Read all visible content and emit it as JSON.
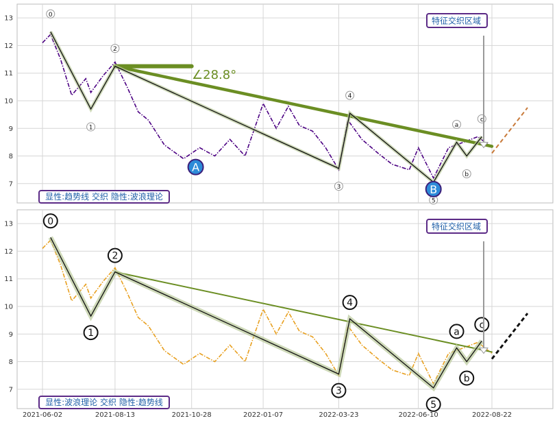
{
  "chart_data": [
    {
      "type": "line",
      "ylim": [
        6.3,
        13.5
      ],
      "y_ticks": [
        "7",
        "8",
        "9",
        "10",
        "11",
        "12",
        "13"
      ],
      "grid": true,
      "series": [
        {
          "color": "#4b0082",
          "style": "dash-dot",
          "x": [
            "2021-06-02",
            "2021-06-10",
            "2021-06-20",
            "2021-07-01",
            "2021-07-15",
            "2021-07-20",
            "2021-08-01",
            "2021-08-13",
            "2021-08-25",
            "2021-09-05",
            "2021-09-15",
            "2021-10-01",
            "2021-10-20",
            "2021-11-05",
            "2021-11-20",
            "2021-12-05",
            "2021-12-20",
            "2022-01-07",
            "2022-01-20",
            "2022-02-01",
            "2022-02-12",
            "2022-02-25",
            "2022-03-10",
            "2022-03-23",
            "2022-04-01",
            "2022-04-15",
            "2022-05-01",
            "2022-05-15",
            "2022-06-01",
            "2022-06-10",
            "2022-06-25",
            "2022-07-10",
            "2022-07-25",
            "2022-08-08",
            "2022-08-22"
          ],
          "y": [
            12.1,
            12.4,
            11.5,
            10.2,
            10.8,
            10.3,
            10.9,
            11.4,
            10.5,
            9.6,
            9.3,
            8.4,
            7.9,
            8.3,
            8.0,
            8.6,
            8.0,
            9.9,
            9.0,
            9.8,
            9.1,
            8.9,
            8.3,
            7.5,
            9.3,
            8.6,
            8.1,
            7.7,
            7.5,
            8.3,
            7.2,
            8.3,
            8.5,
            8.7,
            8.3
          ]
        },
        {
          "color": "#6b8e23",
          "name": "",
          "x": [
            "2021-08-13",
            "2022-08-22"
          ],
          "y": [
            11.25,
            8.35
          ]
        },
        {
          "color": "#6b8e23",
          "x": [
            "2021-08-13",
            "2021-10-28"
          ],
          "y": [
            11.25,
            11.25
          ]
        }
      ],
      "wave_points": [
        {
          "label": "0",
          "x": "2021-06-10",
          "y": 12.5
        },
        {
          "label": "1",
          "x": "2021-07-20",
          "y": 9.7
        },
        {
          "label": "2",
          "x": "2021-08-13",
          "y": 11.25
        },
        {
          "label": "3",
          "x": "2022-03-23",
          "y": 7.55
        },
        {
          "label": "4",
          "x": "2022-04-03",
          "y": 9.55
        },
        {
          "label": "5",
          "x": "2022-06-25",
          "y": 7.05
        },
        {
          "label": "a",
          "x": "2022-07-18",
          "y": 8.5
        },
        {
          "label": "b",
          "x": "2022-07-28",
          "y": 8.0
        },
        {
          "label": "c",
          "x": "2022-08-12",
          "y": 8.7
        }
      ],
      "points_A_B": [
        {
          "label": "A",
          "x": "2021-11-01",
          "y": 7.6
        },
        {
          "label": "B",
          "x": "2022-06-25",
          "y": 6.8
        }
      ],
      "angle_label": "∠28.8°",
      "annotation": "特征交织区域",
      "caption": "显性:趋势线 交织 隐性:波浪理论"
    },
    {
      "type": "line",
      "ylim": [
        6.3,
        13.5
      ],
      "y_ticks": [
        "7",
        "8",
        "9",
        "10",
        "11",
        "12",
        "13"
      ],
      "x_ticks": [
        "2021-06-02",
        "2021-08-13",
        "2021-10-28",
        "2022-01-07",
        "2022-03-23",
        "2022-06-10",
        "2022-08-22"
      ],
      "grid": true,
      "series": [
        {
          "color": "#e8a020",
          "style": "dash-dot",
          "x": [
            "2021-06-02",
            "2021-06-10",
            "2021-06-20",
            "2021-07-01",
            "2021-07-15",
            "2021-07-20",
            "2021-08-01",
            "2021-08-13",
            "2021-08-25",
            "2021-09-05",
            "2021-09-15",
            "2021-10-01",
            "2021-10-20",
            "2021-11-05",
            "2021-11-20",
            "2021-12-05",
            "2021-12-20",
            "2022-01-07",
            "2022-01-20",
            "2022-02-01",
            "2022-02-12",
            "2022-02-25",
            "2022-03-10",
            "2022-03-23",
            "2022-04-01",
            "2022-04-15",
            "2022-05-01",
            "2022-05-15",
            "2022-06-01",
            "2022-06-10",
            "2022-06-25",
            "2022-07-10",
            "2022-07-25",
            "2022-08-08",
            "2022-08-22"
          ],
          "y": [
            12.1,
            12.4,
            11.5,
            10.2,
            10.8,
            10.3,
            10.9,
            11.4,
            10.5,
            9.6,
            9.3,
            8.4,
            7.9,
            8.3,
            8.0,
            8.6,
            8.0,
            9.9,
            9.0,
            9.8,
            9.1,
            8.9,
            8.3,
            7.5,
            9.3,
            8.6,
            8.1,
            7.7,
            7.5,
            8.3,
            7.2,
            8.3,
            8.5,
            8.7,
            8.3
          ]
        },
        {
          "color": "#6b8e23",
          "x": [
            "2021-08-13",
            "2022-08-22"
          ],
          "y": [
            11.25,
            8.35
          ]
        }
      ],
      "wave_points": [
        {
          "label": "0",
          "x": "2021-06-10",
          "y": 12.5
        },
        {
          "label": "1",
          "x": "2021-07-20",
          "y": 9.65
        },
        {
          "label": "2",
          "x": "2021-08-13",
          "y": 11.25
        },
        {
          "label": "3",
          "x": "2022-03-23",
          "y": 7.55
        },
        {
          "label": "4",
          "x": "2022-04-03",
          "y": 9.55
        },
        {
          "label": "5",
          "x": "2022-06-25",
          "y": 7.05
        },
        {
          "label": "a",
          "x": "2022-07-18",
          "y": 8.5
        },
        {
          "label": "b",
          "x": "2022-07-28",
          "y": 8.0
        },
        {
          "label": "c",
          "x": "2022-08-12",
          "y": 8.75
        }
      ],
      "annotation": "特征交织区域",
      "caption": "显性:波浪理论 交织 隐性:趋势线"
    }
  ]
}
